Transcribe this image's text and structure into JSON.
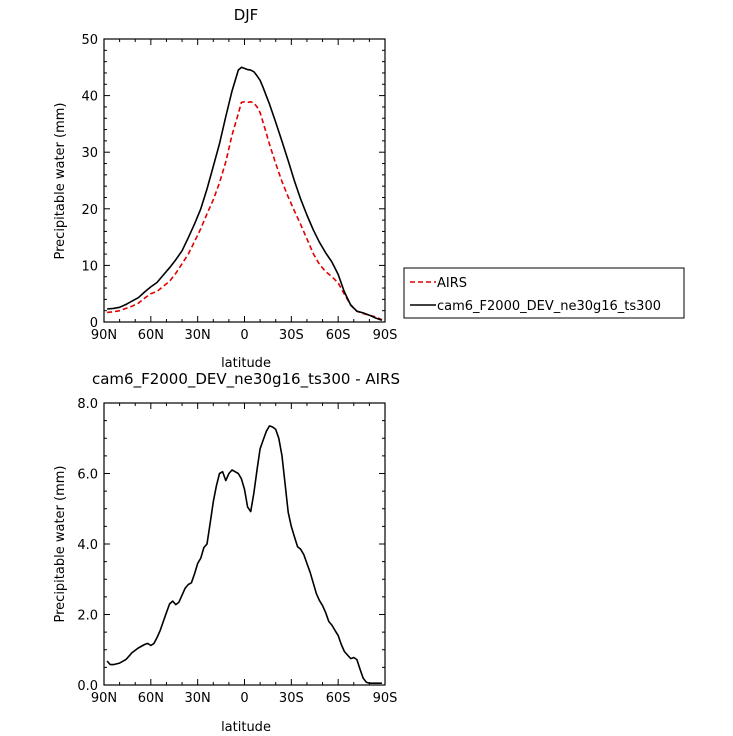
{
  "chart_data": [
    {
      "type": "line",
      "title": "DJF",
      "xlabel": "latitude",
      "ylabel": "Precipitable water (mm)",
      "x_ticks": [
        "90N",
        "60N",
        "30N",
        "0",
        "30S",
        "60S",
        "90S"
      ],
      "y_ticks": [
        "0",
        "10",
        "20",
        "30",
        "40",
        "50"
      ],
      "xlim": [
        90,
        -90
      ],
      "ylim": [
        0,
        50
      ],
      "legend_position": "right",
      "series": [
        {
          "name": "AIRS",
          "color": "#e00000",
          "dash": "dashed",
          "x": [
            88,
            84,
            80,
            76,
            72,
            68,
            64,
            60,
            56,
            52,
            48,
            44,
            40,
            36,
            32,
            28,
            24,
            20,
            16,
            12,
            8,
            4,
            2,
            0,
            -2,
            -4,
            -6,
            -8,
            -10,
            -12,
            -14,
            -16,
            -20,
            -24,
            -28,
            -32,
            -36,
            -40,
            -44,
            -48,
            -52,
            -56,
            -60,
            -64,
            -68,
            -72,
            -76,
            -80,
            -84,
            -88
          ],
          "y": [
            1.7,
            1.8,
            2.0,
            2.4,
            2.8,
            3.3,
            4.2,
            5.0,
            5.4,
            6.3,
            7.2,
            8.6,
            10.3,
            12.0,
            14.2,
            16.5,
            19.1,
            21.6,
            24.6,
            28.3,
            33.0,
            36.8,
            38.8,
            38.9,
            38.8,
            38.9,
            38.7,
            38.0,
            37.0,
            35.2,
            33.3,
            31.4,
            28.0,
            24.8,
            22.1,
            19.6,
            17.2,
            14.7,
            12.1,
            10.2,
            8.9,
            8.0,
            6.9,
            4.9,
            3.0,
            1.9,
            1.5,
            1.2,
            0.9,
            0.4
          ]
        },
        {
          "name": "cam6_F2000_DEV_ne30g16_ts300",
          "color": "#000000",
          "dash": "solid",
          "x": [
            88,
            84,
            80,
            76,
            72,
            68,
            64,
            60,
            56,
            52,
            48,
            44,
            40,
            36,
            32,
            28,
            24,
            20,
            16,
            12,
            8,
            4,
            2,
            0,
            -2,
            -4,
            -6,
            -8,
            -10,
            -12,
            -14,
            -16,
            -20,
            -24,
            -28,
            -32,
            -36,
            -40,
            -44,
            -48,
            -52,
            -56,
            -60,
            -64,
            -68,
            -72,
            -76,
            -80,
            -84,
            -88
          ],
          "y": [
            2.3,
            2.4,
            2.6,
            3.1,
            3.7,
            4.3,
            5.3,
            6.2,
            7.0,
            8.3,
            9.6,
            11.0,
            12.6,
            14.9,
            17.3,
            20.0,
            23.5,
            27.5,
            31.5,
            36.3,
            40.8,
            44.5,
            45.0,
            44.8,
            44.6,
            44.5,
            44.2,
            43.5,
            42.7,
            41.4,
            39.9,
            38.5,
            35.3,
            31.9,
            28.5,
            24.9,
            21.7,
            18.9,
            16.3,
            14.1,
            12.2,
            10.6,
            8.4,
            5.3,
            3.0,
            1.9,
            1.6,
            1.2,
            0.7,
            0.3
          ]
        }
      ]
    },
    {
      "type": "line",
      "title": "cam6_F2000_DEV_ne30g16_ts300 - AIRS",
      "xlabel": "latitude",
      "ylabel": "Precipitable water (mm)",
      "x_ticks": [
        "90N",
        "60N",
        "30N",
        "0",
        "30S",
        "60S",
        "90S"
      ],
      "y_ticks": [
        "0.0",
        "2.0",
        "4.0",
        "6.0",
        "8.0"
      ],
      "xlim": [
        90,
        -90
      ],
      "ylim": [
        0,
        8
      ],
      "series": [
        {
          "color": "#000000",
          "dash": "solid",
          "x": [
            88,
            86,
            84,
            80,
            76,
            72,
            68,
            64,
            62,
            60,
            58,
            56,
            54,
            52,
            50,
            48,
            46,
            44,
            42,
            40,
            38,
            36,
            34,
            32,
            30,
            28,
            26,
            24,
            22,
            20,
            18,
            16,
            14,
            12,
            10,
            8,
            6,
            4,
            2,
            0,
            -2,
            -4,
            -6,
            -8,
            -10,
            -12,
            -14,
            -16,
            -18,
            -20,
            -22,
            -24,
            -26,
            -28,
            -30,
            -32,
            -34,
            -36,
            -38,
            -40,
            -42,
            -44,
            -46,
            -48,
            -50,
            -52,
            -54,
            -56,
            -58,
            -60,
            -62,
            -64,
            -66,
            -68,
            -70,
            -72,
            -74,
            -76,
            -78,
            -80,
            -82,
            -84,
            -86,
            -88
          ],
          "y": [
            0.68,
            0.58,
            0.58,
            0.62,
            0.72,
            0.92,
            1.05,
            1.15,
            1.18,
            1.12,
            1.18,
            1.35,
            1.55,
            1.8,
            2.05,
            2.3,
            2.38,
            2.28,
            2.35,
            2.55,
            2.75,
            2.85,
            2.9,
            3.15,
            3.45,
            3.6,
            3.9,
            4.0,
            4.6,
            5.2,
            5.65,
            6.0,
            6.05,
            5.8,
            6.0,
            6.1,
            6.05,
            6.0,
            5.85,
            5.55,
            5.05,
            4.92,
            5.45,
            6.1,
            6.7,
            6.95,
            7.2,
            7.35,
            7.32,
            7.25,
            7.0,
            6.5,
            5.7,
            4.9,
            4.5,
            4.2,
            3.92,
            3.85,
            3.7,
            3.45,
            3.2,
            2.9,
            2.6,
            2.4,
            2.25,
            2.05,
            1.8,
            1.7,
            1.55,
            1.4,
            1.15,
            0.95,
            0.85,
            0.75,
            0.78,
            0.72,
            0.45,
            0.2,
            0.08,
            0.05,
            0.05,
            0.05,
            0.05,
            0.05
          ]
        }
      ]
    }
  ]
}
